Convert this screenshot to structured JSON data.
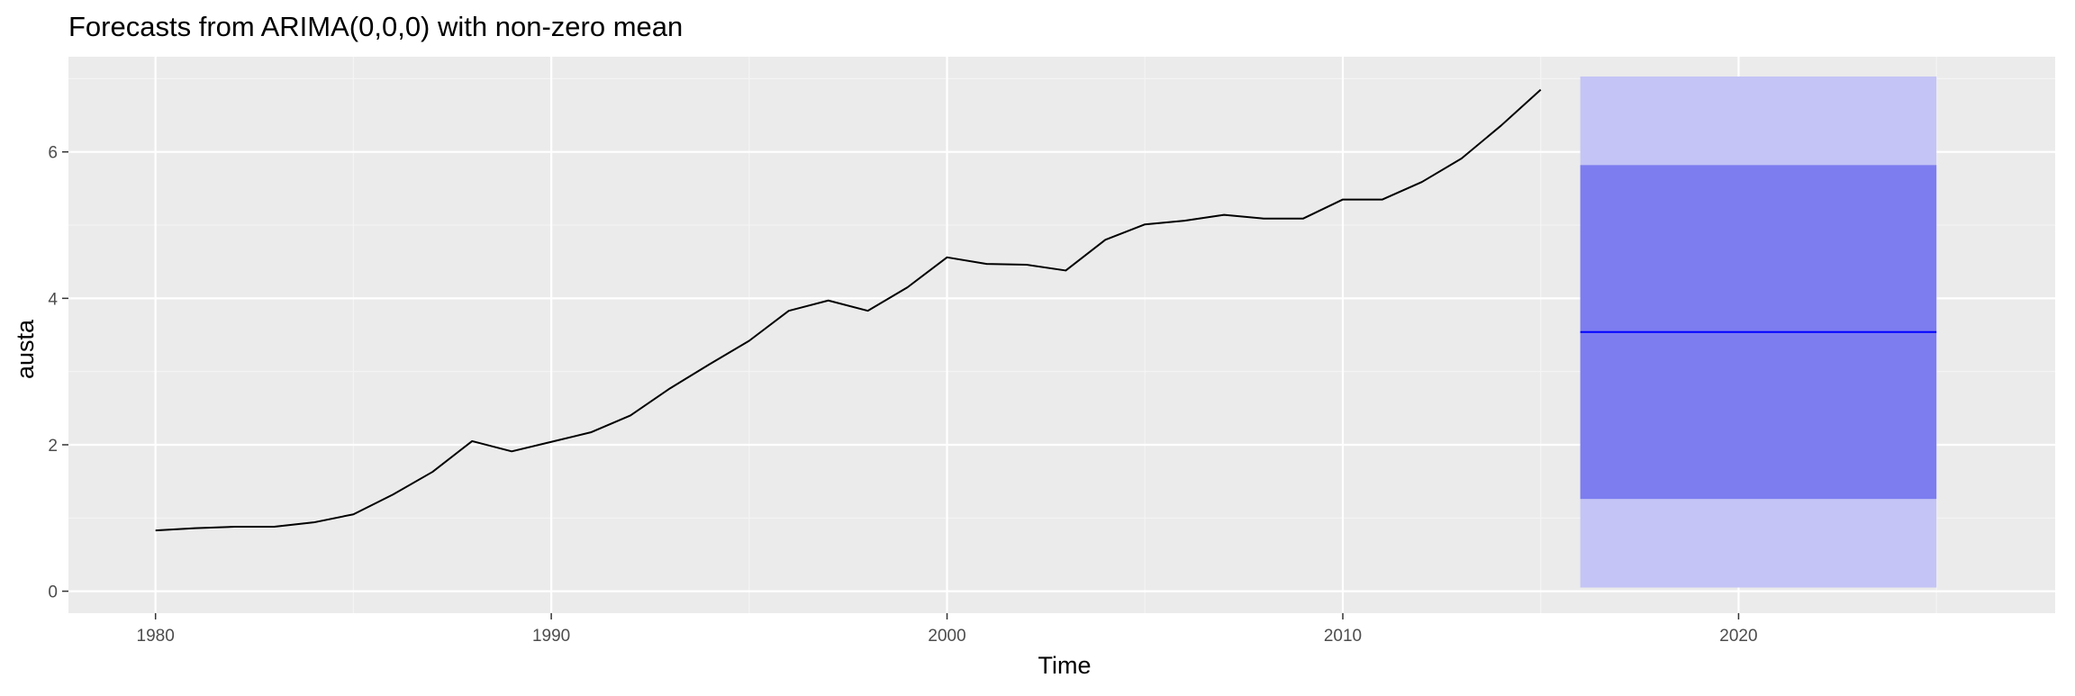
{
  "chart_data": {
    "type": "line",
    "title": "Forecasts from ARIMA(0,0,0) with non-zero mean",
    "xlabel": "Time",
    "ylabel": "austa",
    "xlim": [
      1977.8,
      2028.0
    ],
    "ylim": [
      -0.3,
      7.3
    ],
    "x_ticks": [
      1980,
      1990,
      2000,
      2010,
      2020
    ],
    "y_ticks": [
      0,
      2,
      4,
      6
    ],
    "x_tick_labels": [
      "1980",
      "1990",
      "2000",
      "2010",
      "2020"
    ],
    "y_tick_labels": [
      "0",
      "2",
      "4",
      "6"
    ],
    "grid": true,
    "series": [
      {
        "role": "observed",
        "color": "#000000",
        "x": [
          1980,
          1981,
          1982,
          1983,
          1984,
          1985,
          1986,
          1987,
          1988,
          1989,
          1990,
          1991,
          1992,
          1993,
          1994,
          1995,
          1996,
          1997,
          1998,
          1999,
          2000,
          2001,
          2002,
          2003,
          2004,
          2005,
          2006,
          2007,
          2008,
          2009,
          2010,
          2011,
          2012,
          2013,
          2014,
          2015
        ],
        "values": [
          0.83,
          0.86,
          0.88,
          0.88,
          0.94,
          1.05,
          1.32,
          1.63,
          2.05,
          1.91,
          2.04,
          2.17,
          2.4,
          2.77,
          3.1,
          3.42,
          3.83,
          3.97,
          3.83,
          4.15,
          4.56,
          4.47,
          4.46,
          4.38,
          4.8,
          5.01,
          5.06,
          5.14,
          5.09,
          5.09,
          5.35,
          5.35,
          5.59,
          5.91,
          6.36,
          6.85
        ]
      },
      {
        "role": "point-forecast",
        "color": "#0000ff",
        "x": [
          2016,
          2025
        ],
        "values": [
          3.54,
          3.54
        ]
      }
    ],
    "intervals": [
      {
        "level": 95,
        "color": "#c4c4f6",
        "x": [
          2016,
          2025
        ],
        "lower": 0.05,
        "upper": 7.03
      },
      {
        "level": 80,
        "color": "#7d7df0",
        "x": [
          2016,
          2025
        ],
        "lower": 1.26,
        "upper": 5.82
      }
    ],
    "colors": {
      "panel_background": "#ebebeb",
      "grid_major": "#ffffff",
      "grid_minor": "#f4f4f4",
      "axis_text": "#4d4d4d",
      "title_text": "#000000"
    }
  }
}
